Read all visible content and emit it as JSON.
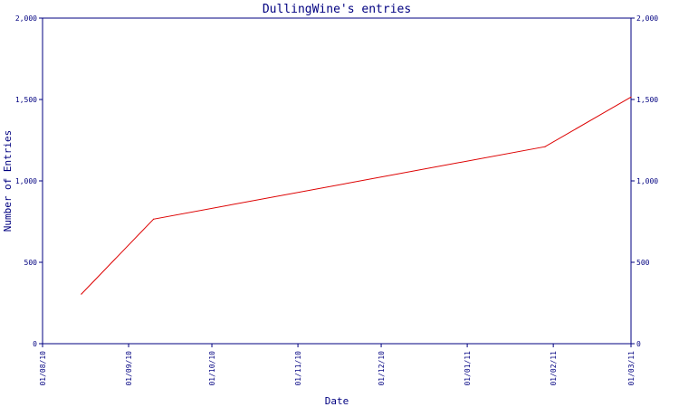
{
  "chart_data": {
    "type": "line",
    "title": "DullingWine's entries",
    "xlabel": "Date",
    "ylabel": "Number of Entries",
    "x_ticks": [
      "01/08/10",
      "01/09/10",
      "01/10/10",
      "01/11/10",
      "01/12/10",
      "01/01/11",
      "01/02/11",
      "01/03/11"
    ],
    "y_ticks": [
      "0",
      "500",
      "1,000",
      "1,500",
      "2,000"
    ],
    "ylim": [
      0,
      2000
    ],
    "xlim": [
      "2010-08-01",
      "2011-03-01"
    ],
    "grid": false,
    "colors": {
      "axis": "#000080",
      "series": "#dd0000"
    },
    "series": [
      {
        "points": [
          {
            "x": "2010-08-15",
            "y": 305
          },
          {
            "x": "2010-09-10",
            "y": 765
          },
          {
            "x": "2011-01-29",
            "y": 1210
          },
          {
            "x": "2011-03-01",
            "y": 1515
          }
        ]
      }
    ]
  }
}
